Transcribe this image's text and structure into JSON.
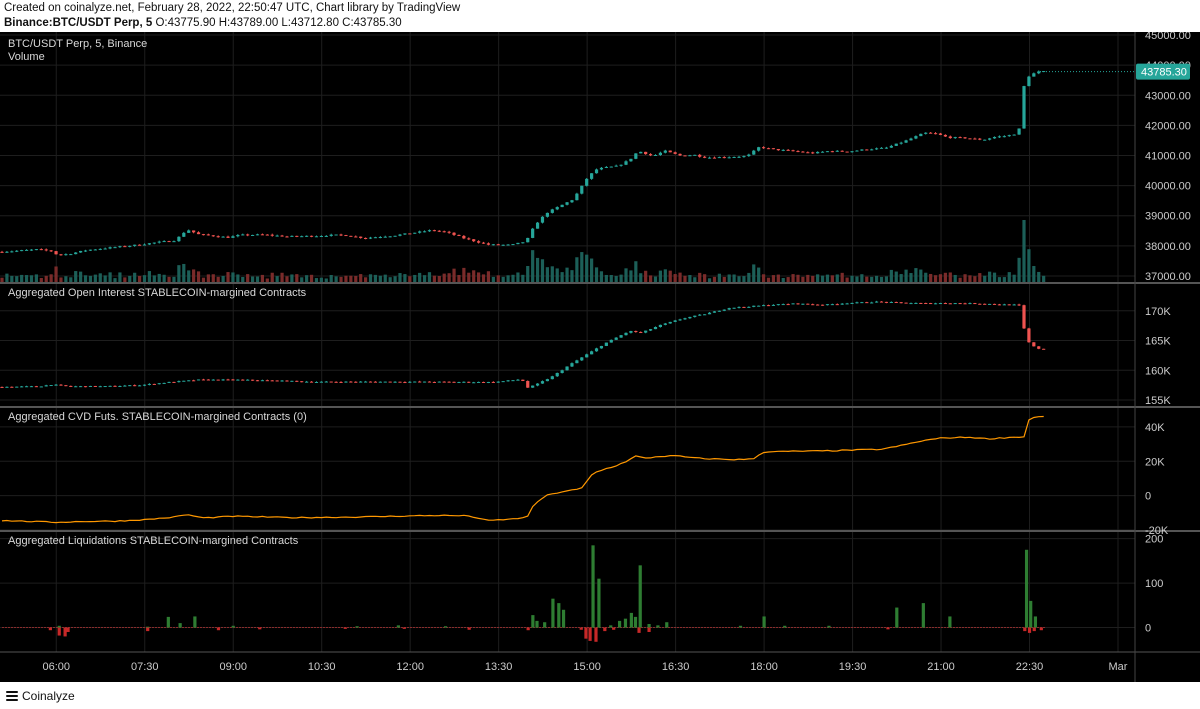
{
  "header": {
    "line1": "Created on coinalyze.net, February 28, 2022, 22:50:47 UTC, Chart library by TradingView",
    "symbol": "Binance:BTC/USDT Perp, 5",
    "ohlc": "O:43775.90 H:43789.00 L:43712.80 C:43785.30"
  },
  "footer": {
    "brand": "Coinalyze",
    "icon": "menu-lines-icon"
  },
  "colors": {
    "up": "#26a69a",
    "down": "#ef5350",
    "cvd": "#ff9800",
    "liq_long": "#2e7d32",
    "liq_short": "#c62828",
    "grid": "#1e1e1e",
    "axis_text": "#cccccc"
  },
  "chart_data": [
    {
      "type": "candlestick",
      "title": "BTC/USDT Perp, 5, Binance",
      "subtitle": "Volume",
      "last_price_label": "43785.30",
      "last_price": 43785.3,
      "yticks": [
        45000,
        44000,
        43000,
        42000,
        41000,
        40000,
        39000,
        38000,
        37000
      ],
      "ytick_labels": [
        "45000.00",
        "44000.00",
        "43000.00",
        "42000.00",
        "41000.00",
        "40000.00",
        "39000.00",
        "38000.00",
        "37000.00"
      ],
      "ylim": [
        36800,
        45100
      ],
      "keypoints": [
        [
          5.08,
          37800
        ],
        [
          5.3,
          37820
        ],
        [
          5.75,
          37880
        ],
        [
          6.0,
          37830
        ],
        [
          6.1,
          37700
        ],
        [
          6.3,
          37730
        ],
        [
          6.6,
          37860
        ],
        [
          7.0,
          37940
        ],
        [
          7.5,
          38040
        ],
        [
          7.8,
          38120
        ],
        [
          8.1,
          38180
        ],
        [
          8.3,
          38540
        ],
        [
          8.5,
          38380
        ],
        [
          8.8,
          38320
        ],
        [
          9.0,
          38280
        ],
        [
          9.2,
          38360
        ],
        [
          9.6,
          38370
        ],
        [
          10.0,
          38310
        ],
        [
          10.5,
          38330
        ],
        [
          10.8,
          38360
        ],
        [
          11.0,
          38350
        ],
        [
          11.3,
          38260
        ],
        [
          11.8,
          38340
        ],
        [
          12.2,
          38450
        ],
        [
          12.45,
          38520
        ],
        [
          12.7,
          38450
        ],
        [
          13.0,
          38250
        ],
        [
          13.4,
          38040
        ],
        [
          13.8,
          38030
        ],
        [
          14.05,
          38150
        ],
        [
          14.2,
          38700
        ],
        [
          14.4,
          39100
        ],
        [
          14.6,
          39300
        ],
        [
          14.85,
          39550
        ],
        [
          15.1,
          40300
        ],
        [
          15.25,
          40550
        ],
        [
          15.4,
          40600
        ],
        [
          15.6,
          40650
        ],
        [
          15.8,
          40850
        ],
        [
          15.95,
          41150
        ],
        [
          16.2,
          40980
        ],
        [
          16.4,
          41150
        ],
        [
          16.65,
          41000
        ],
        [
          16.9,
          41020
        ],
        [
          17.1,
          40930
        ],
        [
          17.5,
          40950
        ],
        [
          17.8,
          40980
        ],
        [
          18.0,
          41280
        ],
        [
          18.25,
          41200
        ],
        [
          18.55,
          41150
        ],
        [
          18.9,
          41080
        ],
        [
          19.2,
          41150
        ],
        [
          19.5,
          41130
        ],
        [
          19.8,
          41200
        ],
        [
          20.15,
          41250
        ],
        [
          20.5,
          41500
        ],
        [
          20.8,
          41750
        ],
        [
          21.0,
          41720
        ],
        [
          21.2,
          41600
        ],
        [
          21.5,
          41580
        ],
        [
          21.8,
          41520
        ],
        [
          22.0,
          41620
        ],
        [
          22.2,
          41650
        ],
        [
          22.4,
          41750
        ],
        [
          22.47,
          43200
        ],
        [
          22.55,
          43600
        ],
        [
          22.62,
          43700
        ],
        [
          22.75,
          43785
        ]
      ],
      "x_label_range": [
        "05:05",
        "22:50"
      ]
    },
    {
      "type": "candlestick",
      "title": "Aggregated Open Interest STABLECOIN-margined Contracts",
      "yticks": [
        170000,
        165000,
        160000,
        155000
      ],
      "ytick_labels": [
        "170K",
        "165K",
        "160K",
        "155K"
      ],
      "ylim": [
        154000,
        174500
      ],
      "keypoints": [
        [
          5.08,
          157200
        ],
        [
          5.8,
          157300
        ],
        [
          6.0,
          157600
        ],
        [
          6.3,
          157300
        ],
        [
          6.9,
          157300
        ],
        [
          7.5,
          157500
        ],
        [
          8.0,
          158000
        ],
        [
          8.5,
          158400
        ],
        [
          9.2,
          158400
        ],
        [
          9.6,
          158300
        ],
        [
          10.5,
          158050
        ],
        [
          11.5,
          158080
        ],
        [
          12.5,
          158050
        ],
        [
          13.5,
          158000
        ],
        [
          13.98,
          158500
        ],
        [
          14.05,
          157000
        ],
        [
          14.2,
          157500
        ],
        [
          14.5,
          159000
        ],
        [
          14.8,
          161000
        ],
        [
          15.1,
          162800
        ],
        [
          15.4,
          164600
        ],
        [
          15.6,
          165600
        ],
        [
          15.8,
          166600
        ],
        [
          16.0,
          166300
        ],
        [
          16.3,
          167500
        ],
        [
          16.7,
          168700
        ],
        [
          17.1,
          169500
        ],
        [
          17.5,
          170500
        ],
        [
          17.8,
          170700
        ],
        [
          18.2,
          171000
        ],
        [
          18.6,
          171200
        ],
        [
          19.1,
          171000
        ],
        [
          19.5,
          171300
        ],
        [
          20.0,
          171500
        ],
        [
          20.4,
          171350
        ],
        [
          20.8,
          171250
        ],
        [
          21.2,
          171300
        ],
        [
          21.8,
          171200
        ],
        [
          22.1,
          171050
        ],
        [
          22.35,
          171000
        ],
        [
          22.45,
          170800
        ],
        [
          22.5,
          166000
        ],
        [
          22.6,
          164200
        ],
        [
          22.75,
          163600
        ]
      ]
    },
    {
      "type": "line",
      "title": "Aggregated CVD Futs. STABLECOIN-margined Contracts (0)",
      "yticks": [
        40000,
        20000,
        0,
        -20000
      ],
      "ytick_labels": [
        "40K",
        "20K",
        "0",
        "-20K"
      ],
      "ylim": [
        -20000,
        51000
      ],
      "keypoints": [
        [
          5.08,
          -14500
        ],
        [
          6.0,
          -15500
        ],
        [
          6.5,
          -15000
        ],
        [
          7.0,
          -14800
        ],
        [
          7.5,
          -14000
        ],
        [
          8.0,
          -12500
        ],
        [
          8.2,
          -11000
        ],
        [
          8.5,
          -13000
        ],
        [
          9.0,
          -12000
        ],
        [
          10.0,
          -12800
        ],
        [
          11.0,
          -12500
        ],
        [
          12.0,
          -11800
        ],
        [
          12.5,
          -11500
        ],
        [
          13.0,
          -11800
        ],
        [
          13.3,
          -14500
        ],
        [
          13.8,
          -13500
        ],
        [
          14.0,
          -12000
        ],
        [
          14.1,
          -5000
        ],
        [
          14.3,
          0
        ],
        [
          14.6,
          2500
        ],
        [
          14.9,
          4000
        ],
        [
          15.1,
          13000
        ],
        [
          15.3,
          15500
        ],
        [
          15.5,
          17500
        ],
        [
          15.7,
          20500
        ],
        [
          15.85,
          23500
        ],
        [
          15.95,
          21500
        ],
        [
          16.2,
          22800
        ],
        [
          16.5,
          23200
        ],
        [
          16.8,
          22000
        ],
        [
          17.0,
          21500
        ],
        [
          17.5,
          21000
        ],
        [
          17.8,
          21200
        ],
        [
          18.0,
          25500
        ],
        [
          18.5,
          25800
        ],
        [
          19.0,
          26000
        ],
        [
          19.5,
          26500
        ],
        [
          20.0,
          27000
        ],
        [
          20.3,
          29000
        ],
        [
          20.7,
          32000
        ],
        [
          21.0,
          33500
        ],
        [
          21.5,
          34000
        ],
        [
          21.8,
          33000
        ],
        [
          22.2,
          34000
        ],
        [
          22.42,
          34200
        ],
        [
          22.5,
          45500
        ],
        [
          22.75,
          46000
        ]
      ]
    },
    {
      "type": "bar",
      "title": "Aggregated Liquidations STABLECOIN-margined Contracts",
      "yticks": [
        200,
        100,
        0
      ],
      "ytick_labels": [
        "200",
        "100",
        "0"
      ],
      "ylim": [
        -55,
        215
      ],
      "series": [
        {
          "name": "longs",
          "spikes": [
            [
              6.05,
              4
            ],
            [
              7.55,
              2
            ],
            [
              7.9,
              24
            ],
            [
              8.1,
              10
            ],
            [
              8.35,
              25
            ],
            [
              9.0,
              4
            ],
            [
              11.1,
              3
            ],
            [
              11.8,
              5
            ],
            [
              12.6,
              3
            ],
            [
              14.08,
              28
            ],
            [
              14.15,
              15
            ],
            [
              14.28,
              12
            ],
            [
              14.42,
              65
            ],
            [
              14.52,
              55
            ],
            [
              14.6,
              40
            ],
            [
              15.1,
              185
            ],
            [
              15.2,
              110
            ],
            [
              15.4,
              5
            ],
            [
              15.55,
              15
            ],
            [
              15.65,
              20
            ],
            [
              15.75,
              33
            ],
            [
              15.82,
              24
            ],
            [
              15.9,
              140
            ],
            [
              16.05,
              8
            ],
            [
              16.2,
              5
            ],
            [
              16.35,
              12
            ],
            [
              17.6,
              4
            ],
            [
              18.0,
              25
            ],
            [
              18.35,
              4
            ],
            [
              19.1,
              4
            ],
            [
              20.25,
              45
            ],
            [
              20.7,
              55
            ],
            [
              21.15,
              25
            ],
            [
              22.45,
              175
            ],
            [
              22.52,
              60
            ],
            [
              22.6,
              25
            ]
          ]
        },
        {
          "name": "shorts",
          "spikes": [
            [
              5.9,
              -6
            ],
            [
              6.05,
              -18
            ],
            [
              6.15,
              -20
            ],
            [
              6.2,
              -10
            ],
            [
              7.55,
              -8
            ],
            [
              8.75,
              -6
            ],
            [
              9.45,
              -4
            ],
            [
              10.9,
              -3
            ],
            [
              11.9,
              -3
            ],
            [
              13.0,
              -5
            ],
            [
              14.0,
              -6
            ],
            [
              14.9,
              -5
            ],
            [
              14.98,
              -25
            ],
            [
              15.05,
              -30
            ],
            [
              15.15,
              -32
            ],
            [
              15.3,
              -8
            ],
            [
              15.45,
              -5
            ],
            [
              15.88,
              -12
            ],
            [
              16.05,
              -10
            ],
            [
              20.1,
              -4
            ],
            [
              22.42,
              -8
            ],
            [
              22.5,
              -12
            ],
            [
              22.58,
              -8
            ],
            [
              22.7,
              -6
            ]
          ]
        }
      ]
    }
  ],
  "x_axis": {
    "ticks": [
      6.0,
      7.5,
      9.0,
      10.5,
      12.0,
      13.5,
      15.0,
      16.5,
      18.0,
      19.5,
      21.0,
      22.5,
      24.0
    ],
    "labels": [
      "06:00",
      "07:30",
      "09:00",
      "10:30",
      "12:00",
      "13:30",
      "15:00",
      "16:30",
      "18:00",
      "19:30",
      "21:00",
      "22:30",
      "Mar"
    ],
    "range_hours": [
      5.08,
      24.0
    ]
  }
}
